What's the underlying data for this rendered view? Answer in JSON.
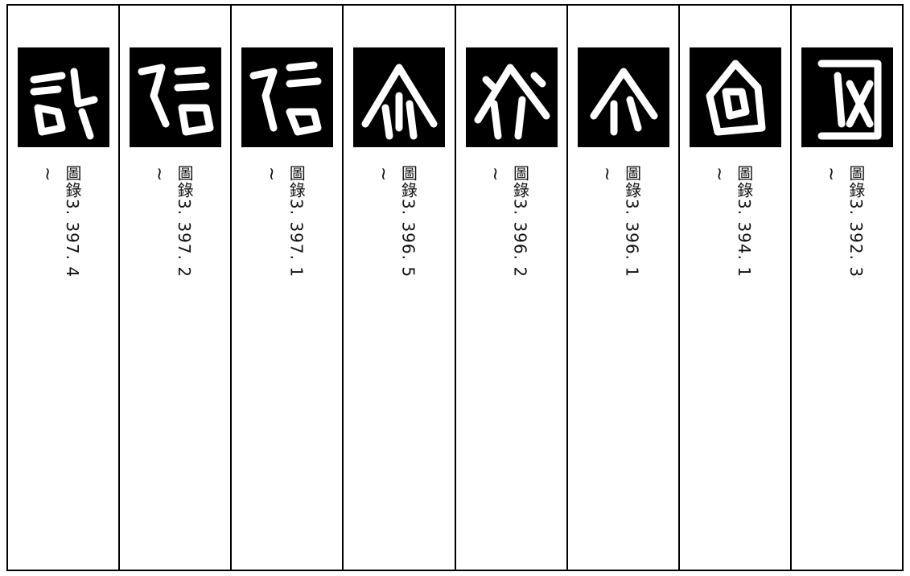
{
  "columns": [
    {
      "mark": "~",
      "label": "圖錄3. 397. 4"
    },
    {
      "mark": "~",
      "label": "圖錄3. 397. 2"
    },
    {
      "mark": "~",
      "label": "圖錄3. 397. 1"
    },
    {
      "mark": "~",
      "label": "圖錄3. 396. 5"
    },
    {
      "mark": "~",
      "label": "圖錄3. 396. 2"
    },
    {
      "mark": "~",
      "label": "圖錄3. 396. 1"
    },
    {
      "mark": "~",
      "label": "圖錄3. 394. 1"
    },
    {
      "mark": "~",
      "label": "圖錄3. 392. 3"
    }
  ]
}
